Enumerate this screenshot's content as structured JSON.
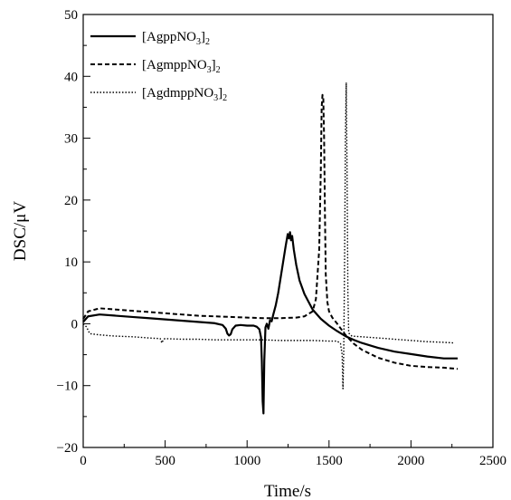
{
  "chart_data": {
    "type": "line",
    "xlabel": "Time/s",
    "ylabel": "DSC/μV",
    "xlim": [
      0,
      2500
    ],
    "ylim": [
      -20,
      50
    ],
    "xticks": [
      0,
      500,
      1000,
      1500,
      2000,
      2500
    ],
    "yticks": [
      -20,
      -10,
      0,
      10,
      20,
      30,
      40,
      50
    ],
    "xtick_labels": [
      "0",
      "500",
      "1000",
      "1500",
      "2000",
      "2500"
    ],
    "ytick_labels": [
      "−20",
      "−10",
      "0",
      "10",
      "20",
      "30",
      "40",
      "50"
    ],
    "minor_ticks": true,
    "grid": false,
    "legend_position": "top-left",
    "series": [
      {
        "name": "[AgppNO3]2",
        "legend_main": "[AgppNO",
        "legend_sub1": "3",
        "legend_close": "]",
        "legend_sub2": "2",
        "style": "solid",
        "color": "#000000",
        "x": [
          0,
          30,
          100,
          200,
          300,
          400,
          500,
          600,
          700,
          800,
          850,
          870,
          880,
          890,
          900,
          910,
          930,
          960,
          1000,
          1040,
          1060,
          1075,
          1085,
          1090,
          1095,
          1100,
          1105,
          1112,
          1120,
          1130,
          1140,
          1150,
          1160,
          1175,
          1190,
          1205,
          1220,
          1235,
          1248,
          1255,
          1262,
          1268,
          1275,
          1285,
          1300,
          1320,
          1350,
          1400,
          1450,
          1500,
          1550,
          1600,
          1650,
          1700,
          1800,
          1900,
          2000,
          2100,
          2200,
          2285
        ],
        "y": [
          0.3,
          1.2,
          1.5,
          1.3,
          1.1,
          0.9,
          0.7,
          0.5,
          0.3,
          0.1,
          -0.2,
          -0.8,
          -1.6,
          -1.9,
          -1.7,
          -0.9,
          -0.3,
          -0.2,
          -0.3,
          -0.3,
          -0.5,
          -0.9,
          -2.2,
          -6.0,
          -12.5,
          -14.5,
          -6.0,
          -0.6,
          0.0,
          -0.8,
          0.6,
          0.4,
          1.5,
          3.0,
          5.0,
          7.5,
          10.0,
          12.5,
          14.5,
          13.8,
          14.8,
          13.5,
          14.2,
          12.0,
          9.5,
          7.0,
          4.8,
          2.3,
          0.8,
          -0.3,
          -1.2,
          -2.0,
          -2.6,
          -3.1,
          -3.9,
          -4.5,
          -4.9,
          -5.3,
          -5.6,
          -5.6
        ]
      },
      {
        "name": "[AgmppNO3]2",
        "legend_main": "[AgmppNO",
        "legend_sub1": "3",
        "legend_close": "]",
        "legend_sub2": "2",
        "style": "dashed",
        "color": "#000000",
        "x": [
          0,
          30,
          100,
          200,
          300,
          400,
          500,
          600,
          700,
          800,
          900,
          1000,
          1100,
          1200,
          1300,
          1350,
          1400,
          1420,
          1440,
          1450,
          1455,
          1460,
          1465,
          1470,
          1475,
          1480,
          1490,
          1500,
          1520,
          1550,
          1600,
          1650,
          1700,
          1800,
          1900,
          2000,
          2100,
          2200,
          2285
        ],
        "y": [
          0.8,
          2.0,
          2.5,
          2.3,
          2.1,
          1.9,
          1.7,
          1.5,
          1.3,
          1.2,
          1.1,
          1.0,
          0.9,
          0.9,
          1.0,
          1.2,
          2.0,
          4.0,
          12.0,
          25.0,
          35.0,
          37.0,
          36.5,
          30.0,
          18.0,
          8.0,
          3.5,
          2.0,
          1.0,
          0.0,
          -1.8,
          -3.2,
          -4.2,
          -5.5,
          -6.3,
          -6.8,
          -7.0,
          -7.1,
          -7.3
        ]
      },
      {
        "name": "[AgdmppNO3]2",
        "legend_main": "[AgdmppNO",
        "legend_sub1": "3",
        "legend_close": "]",
        "legend_sub2": "2",
        "style": "dotted",
        "color": "#000000",
        "x": [
          0,
          20,
          40,
          100,
          200,
          300,
          400,
          470,
          480,
          490,
          500,
          600,
          700,
          800,
          900,
          1000,
          1100,
          1200,
          1300,
          1400,
          1500,
          1550,
          1570,
          1580,
          1585,
          1590,
          1595,
          1600,
          1605,
          1610,
          1615,
          1620,
          1640,
          1700,
          1800,
          1900,
          2000,
          2100,
          2200,
          2260
        ],
        "y": [
          0.0,
          -0.5,
          -1.6,
          -1.8,
          -2.0,
          -2.1,
          -2.3,
          -2.4,
          -3.1,
          -2.5,
          -2.4,
          -2.5,
          -2.5,
          -2.6,
          -2.6,
          -2.6,
          -2.6,
          -2.7,
          -2.7,
          -2.7,
          -2.8,
          -2.8,
          -3.2,
          -5.0,
          -10.5,
          -4.0,
          10.0,
          30.0,
          39.0,
          25.0,
          5.0,
          -1.5,
          -2.0,
          -2.1,
          -2.3,
          -2.5,
          -2.7,
          -2.9,
          -3.0,
          -3.1
        ]
      }
    ]
  }
}
